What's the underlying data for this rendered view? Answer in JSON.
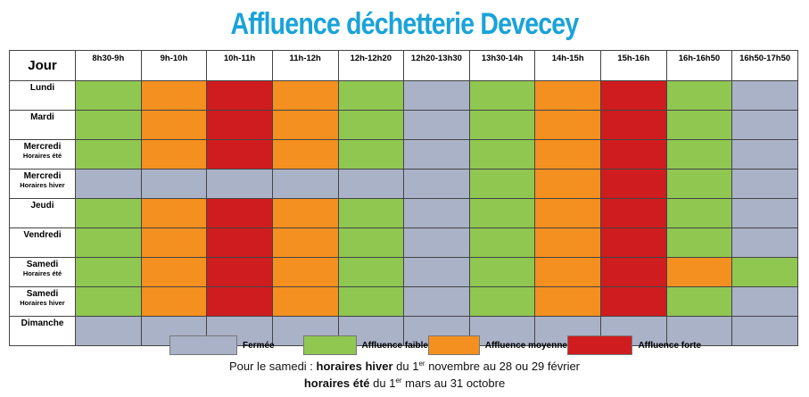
{
  "title": "Affluence déchetterie Devecey",
  "header": {
    "day_label": "Jour",
    "times": [
      "8h30-9h",
      "9h-10h",
      "10h-11h",
      "11h-12h",
      "12h-12h20",
      "12h20-13h30",
      "13h30-14h",
      "14h-15h",
      "15h-16h",
      "16h-16h50",
      "16h50-17h50"
    ]
  },
  "levels": {
    "closed": {
      "label": "Fermée",
      "color": "#aab2c8"
    },
    "low": {
      "label": "Affluence faible",
      "color": "#8fc751"
    },
    "mid": {
      "label": "Affluence moyenne",
      "color": "#f39020"
    },
    "high": {
      "label": "Affluence forte",
      "color": "#cf1c1e"
    }
  },
  "rows": [
    {
      "day": "Lundi",
      "sub": "",
      "cells": [
        "low",
        "mid",
        "high",
        "mid",
        "low",
        "closed",
        "low",
        "mid",
        "high",
        "low",
        "closed"
      ]
    },
    {
      "day": "Mardi",
      "sub": "",
      "cells": [
        "low",
        "mid",
        "high",
        "mid",
        "low",
        "closed",
        "low",
        "mid",
        "high",
        "low",
        "closed"
      ]
    },
    {
      "day": "Mercredi",
      "sub": "Horaires été",
      "cells": [
        "low",
        "mid",
        "high",
        "mid",
        "low",
        "closed",
        "low",
        "mid",
        "high",
        "low",
        "closed"
      ]
    },
    {
      "day": "Mercredi",
      "sub": "Horaires hiver",
      "cells": [
        "closed",
        "closed",
        "closed",
        "closed",
        "closed",
        "closed",
        "low",
        "mid",
        "high",
        "low",
        "closed"
      ]
    },
    {
      "day": "Jeudi",
      "sub": "",
      "cells": [
        "low",
        "mid",
        "high",
        "mid",
        "low",
        "closed",
        "low",
        "mid",
        "high",
        "low",
        "closed"
      ]
    },
    {
      "day": "Vendredi",
      "sub": "",
      "cells": [
        "low",
        "mid",
        "high",
        "mid",
        "low",
        "closed",
        "low",
        "mid",
        "high",
        "low",
        "closed"
      ]
    },
    {
      "day": "Samedi",
      "sub": "Horaires été",
      "cells": [
        "low",
        "mid",
        "high",
        "mid",
        "low",
        "closed",
        "low",
        "mid",
        "high",
        "mid",
        "low"
      ]
    },
    {
      "day": "Samedi",
      "sub": "Horaires hiver",
      "cells": [
        "low",
        "mid",
        "high",
        "mid",
        "low",
        "closed",
        "low",
        "mid",
        "high",
        "low",
        "closed"
      ]
    },
    {
      "day": "Dimanche",
      "sub": "",
      "cells": [
        "closed",
        "closed",
        "closed",
        "closed",
        "closed",
        "closed",
        "closed",
        "closed",
        "closed",
        "closed",
        "closed"
      ]
    }
  ],
  "legend_order": [
    "closed",
    "low",
    "mid",
    "high"
  ],
  "note": {
    "line1_prefix": "Pour le samedi : ",
    "line1_bold": "horaires hiver",
    "line1_a": " du 1",
    "line1_sup": "er",
    "line1_b": " novembre au 28 ou 29 février",
    "line2_bold": "horaires été",
    "line2_a": " du 1",
    "line2_sup": "er",
    "line2_b": " mars au 31 octobre"
  }
}
